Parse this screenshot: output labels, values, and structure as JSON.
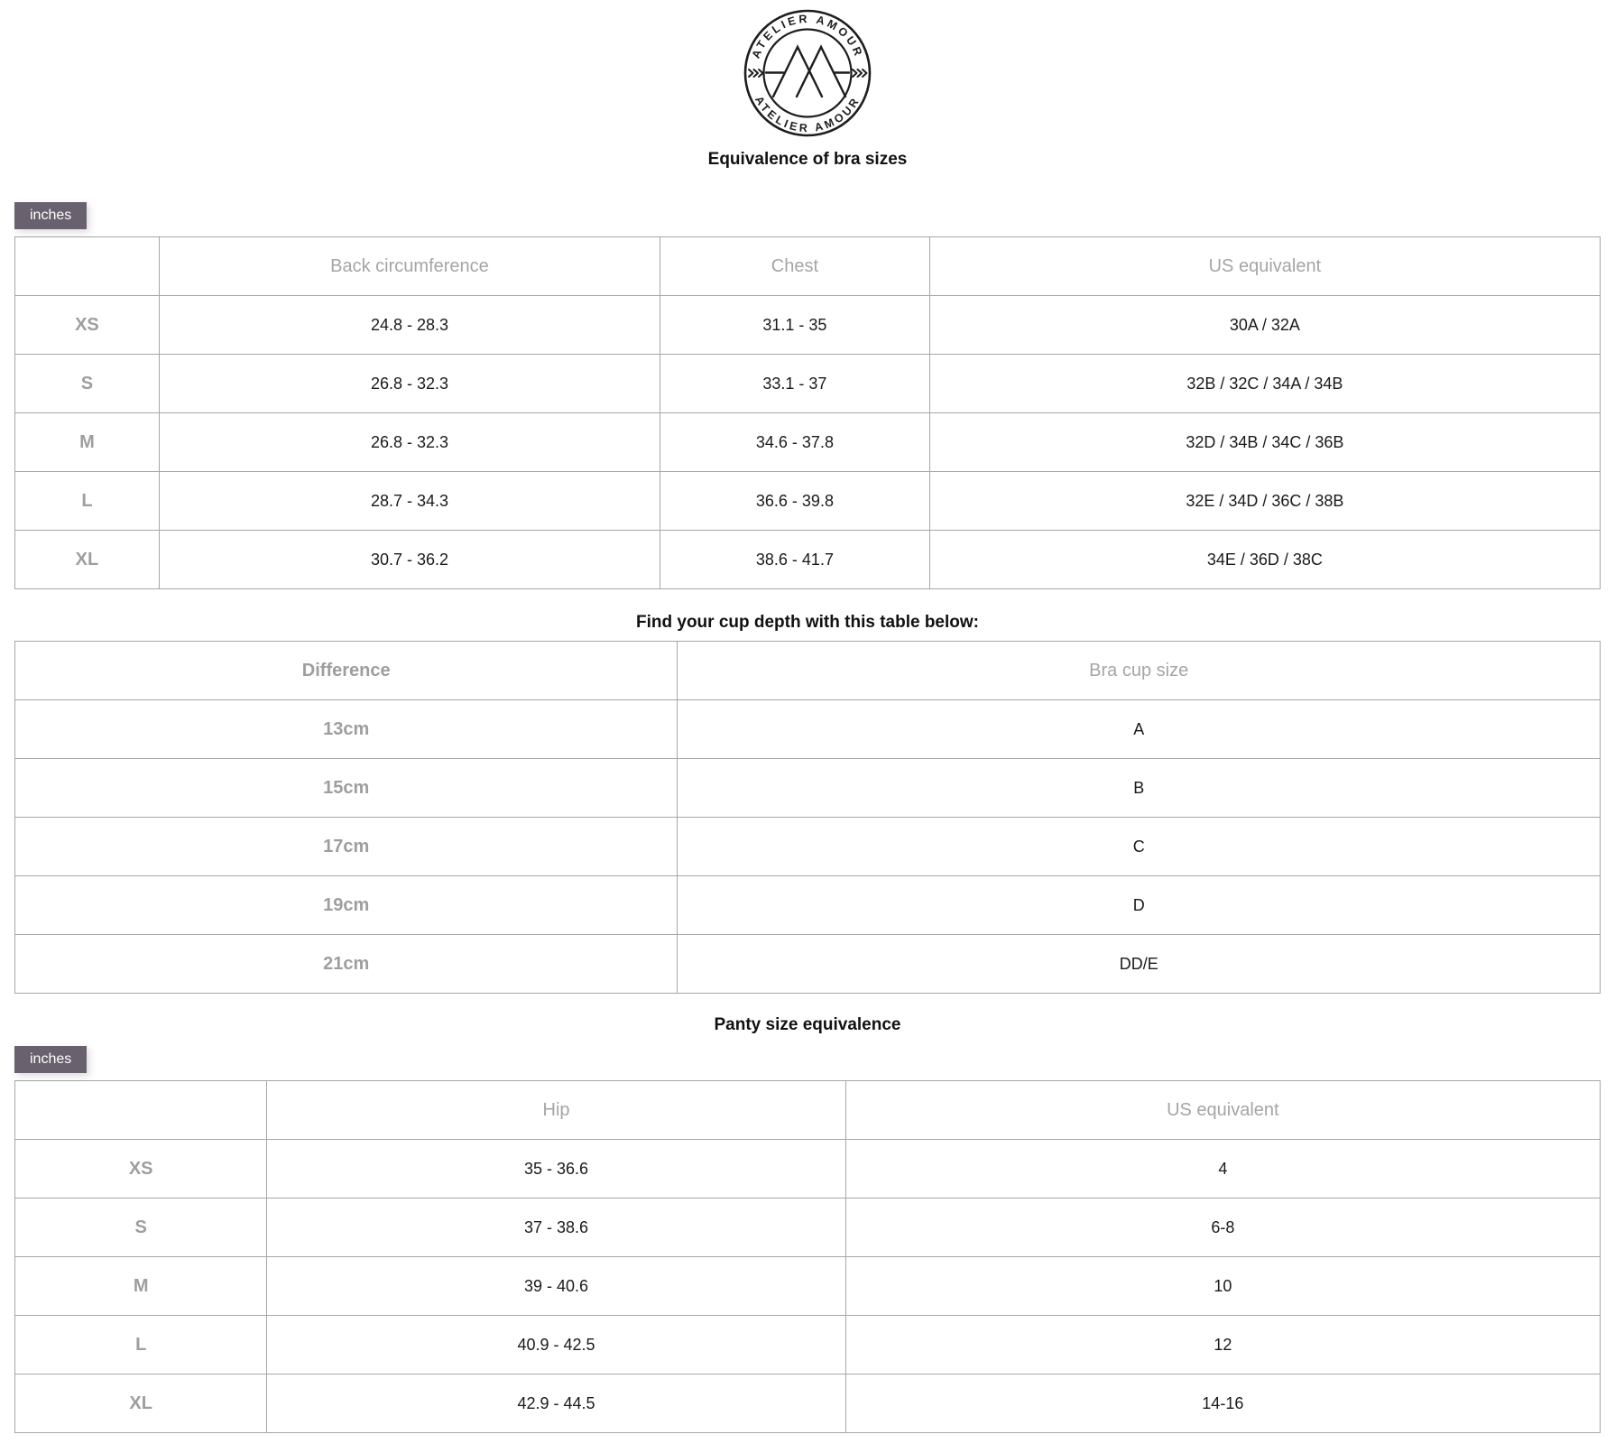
{
  "logo": {
    "arc_top": "ATELIER AMOUR",
    "arc_bottom": "ATELIER AMOUR"
  },
  "sections": [
    {
      "title": "Equivalence of bra sizes",
      "unit_tab_label": "inches",
      "table": {
        "headers": [
          "",
          "Back circumference",
          "Chest",
          "US equivalent"
        ],
        "rows": [
          {
            "label": "XS",
            "cells": [
              "24.8 - 28.3",
              "31.1 - 35",
              "30A / 32A"
            ]
          },
          {
            "label": "S",
            "cells": [
              "26.8 - 32.3",
              "33.1 - 37",
              "32B / 32C / 34A / 34B"
            ]
          },
          {
            "label": "M",
            "cells": [
              "26.8 - 32.3",
              "34.6 - 37.8",
              "32D / 34B / 34C / 36B"
            ]
          },
          {
            "label": "L",
            "cells": [
              "28.7 - 34.3",
              "36.6 - 39.8",
              "32E / 34D / 36C / 38B"
            ]
          },
          {
            "label": "XL",
            "cells": [
              "30.7 - 36.2",
              "38.6 - 41.7",
              "34E / 36D / 38C"
            ]
          }
        ]
      }
    },
    {
      "title": "Find your cup depth with this table below:",
      "table": {
        "headers": [
          "Difference",
          "Bra cup size"
        ],
        "rows": [
          {
            "label": "13cm",
            "cells": [
              "A"
            ]
          },
          {
            "label": "15cm",
            "cells": [
              "B"
            ]
          },
          {
            "label": "17cm",
            "cells": [
              "C"
            ]
          },
          {
            "label": "19cm",
            "cells": [
              "D"
            ]
          },
          {
            "label": "21cm",
            "cells": [
              "DD/E"
            ]
          }
        ]
      }
    },
    {
      "title": "Panty size equivalence",
      "unit_tab_label": "inches",
      "table": {
        "headers": [
          "",
          "Hip",
          "US equivalent"
        ],
        "rows": [
          {
            "label": "XS",
            "cells": [
              "35 - 36.6",
              "4"
            ]
          },
          {
            "label": "S",
            "cells": [
              "37 - 38.6",
              "6-8"
            ]
          },
          {
            "label": "M",
            "cells": [
              "39 - 40.6",
              "10"
            ]
          },
          {
            "label": "L",
            "cells": [
              "40.9 - 42.5",
              "12"
            ]
          },
          {
            "label": "XL",
            "cells": [
              "42.9 - 44.5",
              "14-16"
            ]
          }
        ]
      }
    }
  ],
  "colors": {
    "accent_tab": "#69616e",
    "tab_text": "#ffffff",
    "column_header_text": "#a5a5a5",
    "row_label_text": "#9e9e9e",
    "cell_text": "#1a1a1a",
    "grid_line": "#a6a6a6",
    "logo_ink": "#1d1d1d"
  }
}
